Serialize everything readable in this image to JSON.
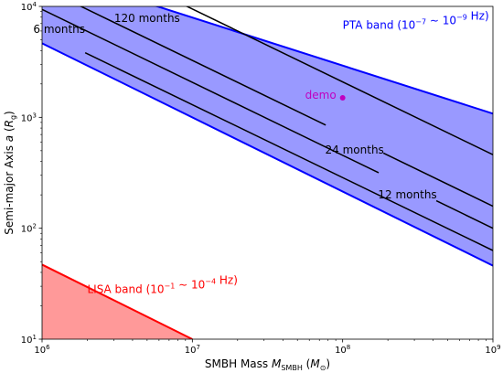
{
  "chart_data": {
    "type": "line",
    "title": "",
    "xlabel": {
      "prefix": "SMBH Mass ",
      "var": "M",
      "sub": "SMBH",
      "unit_open": " (",
      "unit_var": "M",
      "unit_sub": "⊙",
      "unit_close": ")"
    },
    "ylabel": {
      "prefix": "Semi-major Axis ",
      "var": "a",
      "unit_open": " (",
      "unit_var": "R",
      "unit_sub": "g",
      "unit_close": ")"
    },
    "xscale": "log",
    "yscale": "log",
    "xlim": [
      1000000,
      1000000000
    ],
    "ylim": [
      10,
      10000
    ],
    "xticks": [
      {
        "value": 1000000,
        "base": "10",
        "exp": "6"
      },
      {
        "value": 10000000,
        "base": "10",
        "exp": "7"
      },
      {
        "value": 100000000,
        "base": "10",
        "exp": "8"
      },
      {
        "value": 1000000000,
        "base": "10",
        "exp": "9"
      }
    ],
    "yticks": [
      {
        "value": 10,
        "base": "10",
        "exp": "1"
      },
      {
        "value": 100,
        "base": "10",
        "exp": "2"
      },
      {
        "value": 1000,
        "base": "10",
        "exp": "3"
      },
      {
        "value": 10000,
        "base": "10",
        "exp": "4"
      }
    ],
    "bands": [
      {
        "name": "PTA band",
        "color": "#0000ff",
        "fill": "#9999ff",
        "x": [
          1000000,
          1000000000
        ],
        "upper": [
          21500,
          1080
        ],
        "lower": [
          4650,
          46
        ]
      },
      {
        "name": "LISA band",
        "color": "#ff0000",
        "fill": "#ff9999",
        "polygon": [
          [
            1000000,
            47
          ],
          [
            10000000,
            10
          ],
          [
            1000000,
            10
          ]
        ]
      }
    ],
    "period_lines": [
      {
        "label": "6 months",
        "x": [
          1000000,
          1000000000
        ],
        "y": [
          5900,
          63
        ]
      },
      {
        "label": "12 months",
        "x": [
          1000000,
          1000000000
        ],
        "y": [
          9400,
          100
        ]
      },
      {
        "label": "24 months",
        "x": [
          1000000,
          1000000000
        ],
        "y": [
          14800,
          158
        ]
      },
      {
        "label": "120 months",
        "x": [
          1000000,
          1000000000
        ],
        "y": [
          43000,
          460
        ]
      }
    ],
    "label_positions": [
      {
        "name": "6 months",
        "x": 1300000,
        "y": 6200
      },
      {
        "label": "120 months",
        "x": 5000000,
        "y": 7800
      },
      {
        "label": "24 months",
        "x": 120000000,
        "y": 510
      },
      {
        "label": "12 months",
        "x": 270000000,
        "y": 200
      }
    ],
    "points": [
      {
        "label": "demo",
        "x": 100000000,
        "y": 1500,
        "color": "#c000c0"
      }
    ],
    "annotations": [
      {
        "text": "PTA band (10",
        "sup1": "−7",
        "mid": " ∼ 10",
        "sup2": "−9",
        "end": " Hz)",
        "color": "#0000ff",
        "x": 100000000,
        "y": 6800
      },
      {
        "text": "LISA band (10",
        "sup1": "−1",
        "mid": " ∼ 10",
        "sup2": "−4",
        "end": " Hz)",
        "color": "#ff0000",
        "x": 2000000,
        "y": 28
      }
    ]
  }
}
